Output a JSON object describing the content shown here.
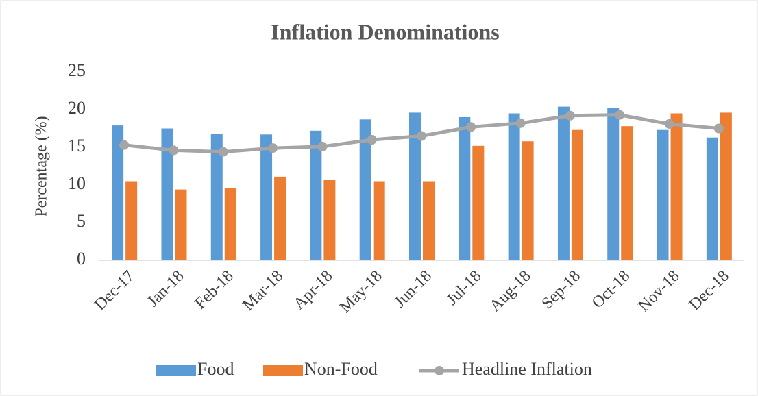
{
  "chart_data": {
    "type": "bar",
    "title": "Inflation Denominations",
    "y_label": "Percentage (%)",
    "categories": [
      "Dec-17",
      "Jan-18",
      "Feb-18",
      "Mar-18",
      "Apr-18",
      "May-18",
      "Jun-18",
      "Jul-18",
      "Aug-18",
      "Sep-18",
      "Oct-18",
      "Nov-18",
      "Dec-18"
    ],
    "series": [
      {
        "name": "Food",
        "type": "bar",
        "color": "#5b9bd5",
        "values": [
          17.9,
          17.5,
          16.8,
          16.7,
          17.2,
          18.7,
          19.6,
          19.0,
          19.5,
          20.4,
          20.2,
          17.3,
          16.3
        ]
      },
      {
        "name": "Non-Food",
        "type": "bar",
        "color": "#ed7d31",
        "values": [
          10.5,
          9.4,
          9.6,
          11.1,
          10.7,
          10.5,
          10.5,
          15.2,
          15.8,
          17.3,
          17.8,
          19.5,
          19.6
        ]
      },
      {
        "name": "Headline Inflation",
        "type": "line",
        "color": "#a5a5a5",
        "values": [
          15.3,
          14.6,
          14.4,
          14.9,
          15.1,
          16.0,
          16.5,
          17.7,
          18.2,
          19.2,
          19.3,
          18.1,
          17.5
        ]
      }
    ],
    "ylim": [
      0,
      25
    ],
    "yticks": [
      0,
      5,
      10,
      15,
      20,
      25
    ],
    "grid": false,
    "legend": "bottom"
  }
}
